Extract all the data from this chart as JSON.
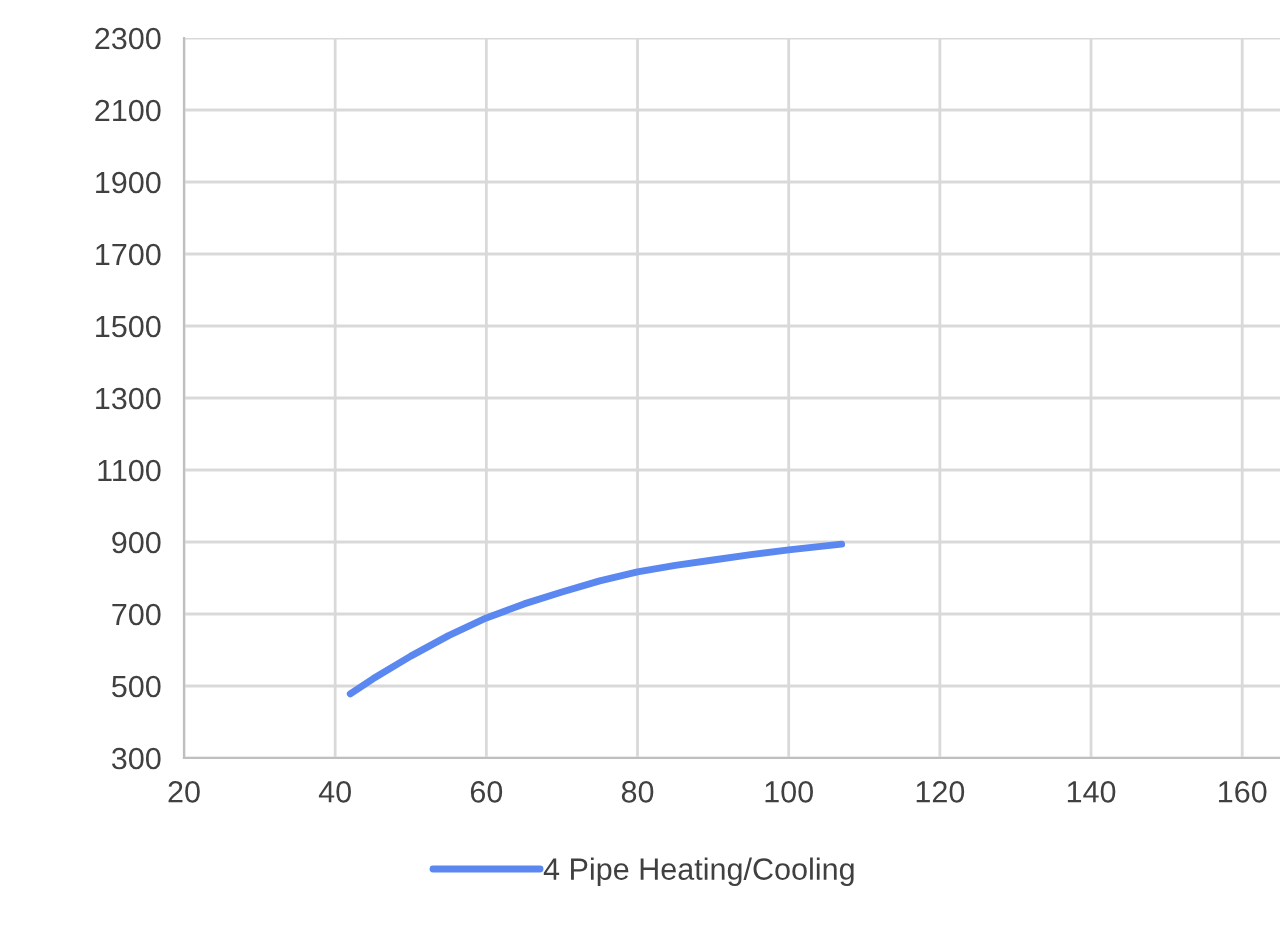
{
  "chart_data": {
    "type": "line",
    "x": [
      42,
      45,
      50,
      55,
      60,
      65,
      70,
      75,
      80,
      85,
      90,
      95,
      100,
      107
    ],
    "series": [
      {
        "name": "4 Pipe Heating/Cooling",
        "color": "#5b87f0",
        "values": [
          478,
          520,
          583,
          640,
          689,
          728,
          761,
          792,
          817,
          835,
          850,
          865,
          878,
          894
        ]
      }
    ],
    "xlim": [
      20,
      165
    ],
    "xticks": [
      20,
      40,
      60,
      80,
      100,
      120,
      140,
      160
    ],
    "ylim": [
      300,
      2300
    ],
    "yticks": [
      300,
      500,
      700,
      900,
      1100,
      1300,
      1500,
      1700,
      1900,
      2100,
      2300
    ],
    "grid": true,
    "legend": "bottom",
    "marker": "none",
    "line_style": "solid"
  }
}
